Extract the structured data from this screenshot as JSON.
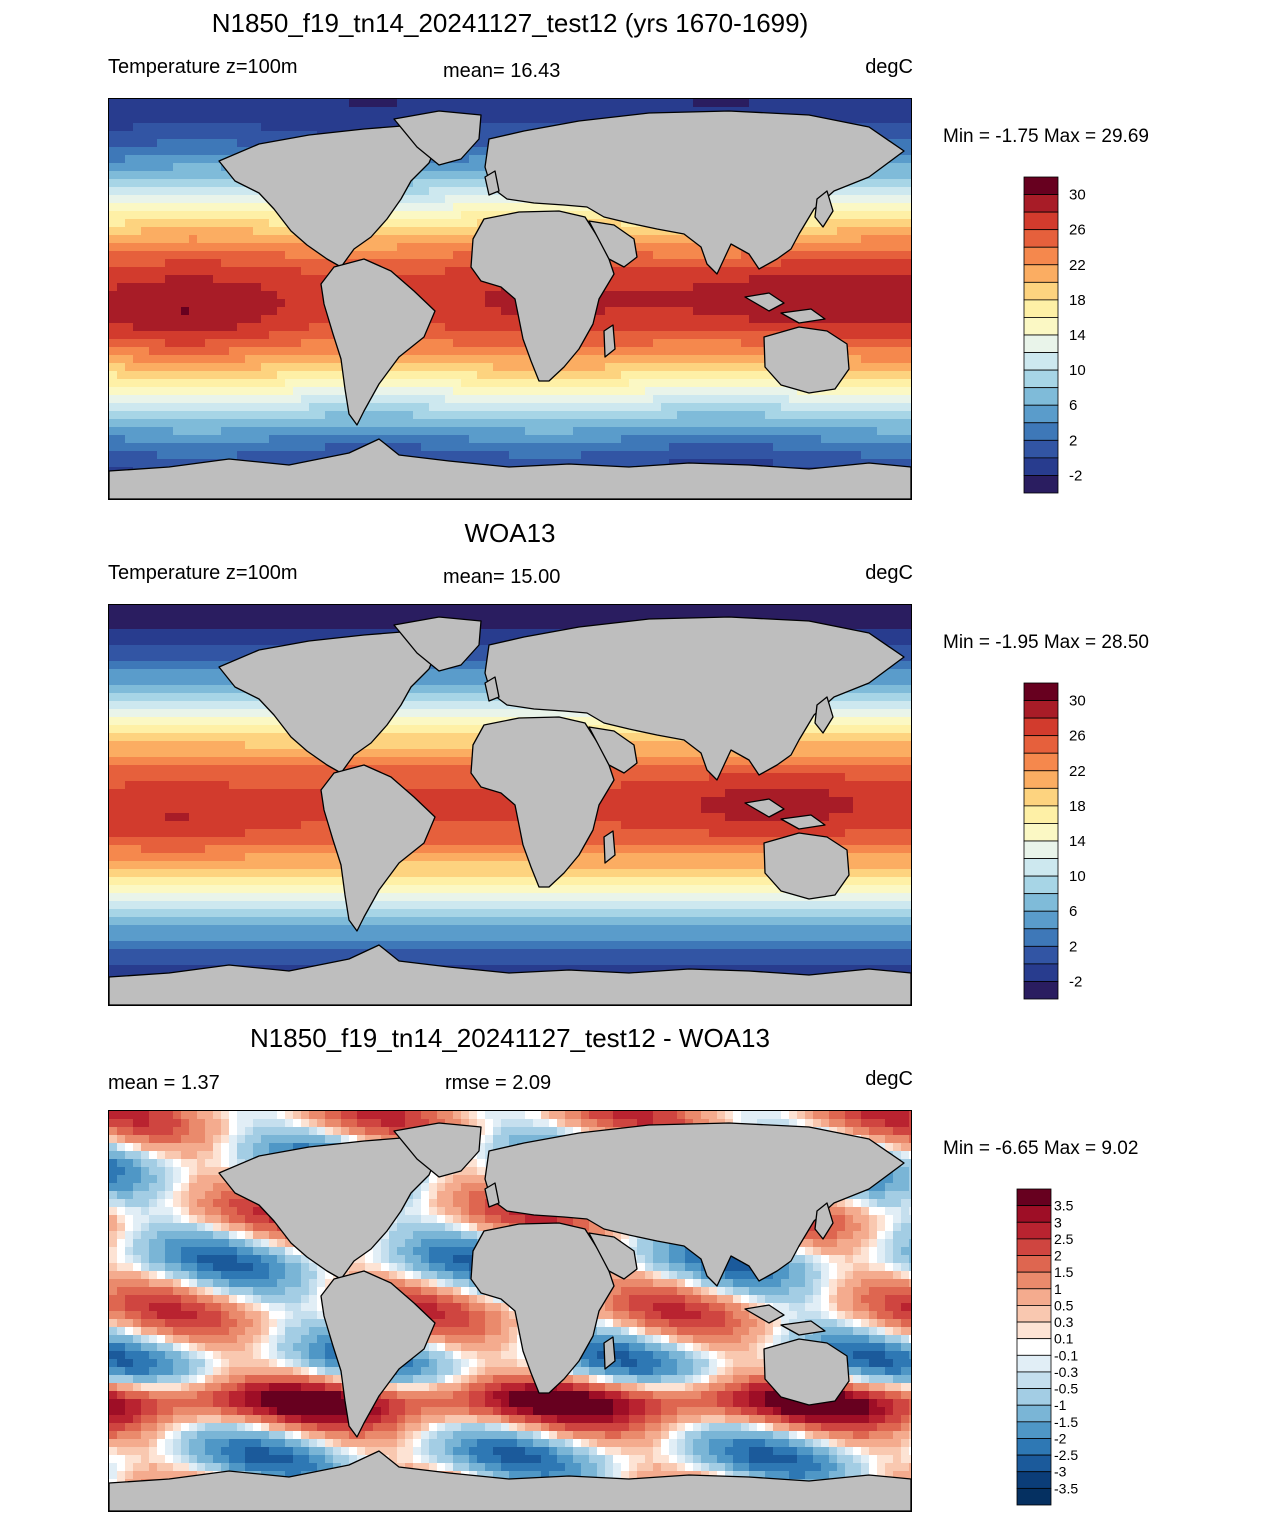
{
  "panels": [
    {
      "title": "N1850_f19_tn14_20241127_test12 (yrs 1670-1699)",
      "left_label": "Temperature z=100m",
      "center_label": "mean=  16.43",
      "units": "degC",
      "minmax": "Min =  -1.75 Max =  29.69",
      "field": "model"
    },
    {
      "title": "WOA13",
      "left_label": "Temperature z=100m",
      "center_label": "mean=  15.00",
      "units": "degC",
      "minmax": "Min =  -1.95 Max =  28.50",
      "field": "obs"
    },
    {
      "title": "N1850_f19_tn14_20241127_test12 - WOA13",
      "left_label": "mean =   1.37",
      "center_label": "rmse =   2.09",
      "units": "degC",
      "minmax": "Min =  -6.65 Max =   9.02",
      "field": "diff"
    }
  ],
  "colorbars": {
    "temperature": {
      "labels": [
        "30",
        "26",
        "22",
        "18",
        "14",
        "10",
        "6",
        "2",
        "-2"
      ],
      "colors": [
        "#67001f",
        "#a81c27",
        "#d23b2d",
        "#e6603c",
        "#f5884d",
        "#fbad62",
        "#fdd37f",
        "#fef0a6",
        "#fbf8c4",
        "#e9f4ea",
        "#cde8ef",
        "#a7d5e6",
        "#7fbbd9",
        "#5a9ccb",
        "#3e78b8",
        "#3255a4",
        "#283c8e",
        "#2a1d60"
      ]
    },
    "difference": {
      "labels": [
        "3.5",
        "3",
        "2.5",
        "2",
        "1.5",
        "1",
        "0.5",
        "0.3",
        "0.1",
        "-0.1",
        "-0.3",
        "-0.5",
        "-1",
        "-1.5",
        "-2",
        "-2.5",
        "-3",
        "-3.5"
      ],
      "colors": [
        "#67001f",
        "#9e0e26",
        "#b92330",
        "#cf4540",
        "#de6650",
        "#ea8a6c",
        "#f4ab8e",
        "#f9c8b0",
        "#fde3d4",
        "#ffffff",
        "#e1eef6",
        "#c5dfee",
        "#a3cde4",
        "#7ab5d6",
        "#4f97c6",
        "#2e78b4",
        "#1b5a9b",
        "#0b3d78",
        "#053061"
      ]
    }
  }
}
